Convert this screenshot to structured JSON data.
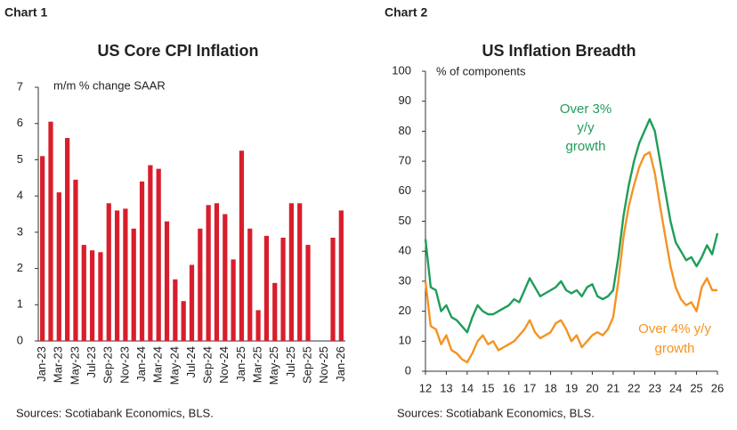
{
  "chart_data": [
    {
      "type": "bar",
      "heading": "Chart 1",
      "title": "US Core CPI Inflation",
      "y_label": "m/m % change SAAR",
      "source": "Sources: Scotiabank Economics, BLS.",
      "color": "#d81e2c",
      "categories": [
        "Jan-23",
        null,
        "Mar-23",
        null,
        "May-23",
        null,
        "Jul-23",
        null,
        "Sep-23",
        null,
        "Nov-23",
        null,
        "Jan-24",
        null,
        "Mar-24",
        null,
        "May-24",
        null,
        "Jul-24",
        null,
        "Sep-24",
        null,
        "Nov-24",
        null,
        "Jan-25",
        null,
        "Mar-25",
        null,
        "May-25",
        null,
        "Jul-25",
        null,
        "Sep-25",
        null,
        "Nov-25",
        null,
        "Jan-26"
      ],
      "values": [
        5.1,
        6.05,
        4.1,
        5.6,
        4.45,
        2.65,
        2.5,
        2.45,
        3.8,
        3.6,
        3.65,
        3.1,
        4.4,
        4.85,
        4.75,
        3.3,
        1.7,
        1.1,
        2.1,
        3.1,
        3.75,
        3.8,
        3.5,
        2.25,
        5.25,
        3.1,
        0.85,
        2.9,
        1.6,
        2.85,
        3.8,
        3.8,
        2.65,
        null,
        null,
        2.85,
        3.6
      ],
      "ylim": [
        0,
        7
      ],
      "yticks": [
        0,
        1,
        2,
        3,
        4,
        5,
        6,
        7
      ]
    },
    {
      "type": "line",
      "heading": "Chart 2",
      "title": "US Inflation Breadth",
      "y_label": "% of components",
      "source": "Sources: Scotiabank Economics, BLS.",
      "x": [
        12,
        12.25,
        12.5,
        12.75,
        13,
        13.25,
        13.5,
        13.75,
        14,
        14.25,
        14.5,
        14.75,
        15,
        15.25,
        15.5,
        15.75,
        16,
        16.25,
        16.5,
        16.75,
        17,
        17.25,
        17.5,
        17.75,
        18,
        18.25,
        18.5,
        18.75,
        19,
        19.25,
        19.5,
        19.75,
        20,
        20.25,
        20.5,
        20.75,
        21,
        21.25,
        21.5,
        21.75,
        22,
        22.25,
        22.5,
        22.75,
        23,
        23.25,
        23.5,
        23.75,
        24,
        24.25,
        24.5,
        24.75,
        25,
        25.25,
        25.5,
        25.75,
        26
      ],
      "series": [
        {
          "name": "Over 3% y/y growth",
          "annotation": [
            "Over 3%",
            "y/y",
            "growth"
          ],
          "color": "#1f9d5a",
          "values": [
            44,
            28,
            27,
            20,
            22,
            18,
            17,
            15,
            13,
            18,
            22,
            20,
            19,
            19,
            20,
            21,
            22,
            24,
            23,
            27,
            31,
            28,
            25,
            26,
            27,
            28,
            30,
            27,
            26,
            27,
            25,
            28,
            29,
            25,
            24,
            25,
            27,
            38,
            52,
            62,
            70,
            76,
            80,
            84,
            80,
            70,
            60,
            50,
            43,
            40,
            37,
            38,
            35,
            38,
            42,
            39,
            46
          ]
        },
        {
          "name": "Over 4% y/y growth",
          "annotation": [
            "Over 4% y/y",
            "growth"
          ],
          "color": "#f39423",
          "values": [
            30,
            15,
            14,
            9,
            12,
            7,
            6,
            4,
            3,
            6,
            10,
            12,
            9,
            10,
            7,
            8,
            9,
            10,
            12,
            14,
            17,
            13,
            11,
            12,
            13,
            16,
            17,
            14,
            10,
            12,
            8,
            10,
            12,
            13,
            12,
            14,
            18,
            30,
            45,
            55,
            62,
            68,
            72,
            73,
            66,
            55,
            45,
            35,
            28,
            24,
            22,
            23,
            20,
            28,
            31,
            27,
            27
          ]
        }
      ],
      "xlim": [
        12,
        26
      ],
      "xticks": [
        12,
        13,
        14,
        15,
        16,
        17,
        18,
        19,
        20,
        21,
        22,
        23,
        24,
        25,
        26
      ],
      "ylim": [
        0,
        100
      ],
      "yticks": [
        0,
        10,
        20,
        30,
        40,
        50,
        60,
        70,
        80,
        90,
        100
      ]
    }
  ]
}
